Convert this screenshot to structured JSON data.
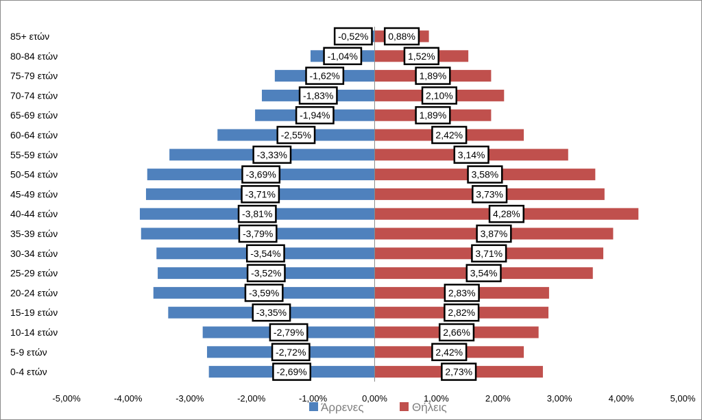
{
  "chart_data": {
    "type": "bar",
    "orientation": "horizontal",
    "stacked_pyramid": true,
    "categories": [
      "85+ ετών",
      "80-84 ετών",
      "75-79 ετών",
      "70-74 ετών",
      "65-69 ετών",
      "60-64 ετών",
      "55-59 ετών",
      "50-54 ετών",
      "45-49 ετών",
      "40-44 ετών",
      "35-39 ετών",
      "30-34 ετών",
      "25-29 ετών",
      "20-24 ετών",
      "15-19 ετών",
      "10-14 ετών",
      "5-9 ετών",
      "0-4 ετών"
    ],
    "series": [
      {
        "name": "Άρρενες",
        "color": "#4f81bd",
        "values": [
          -0.52,
          -1.04,
          -1.62,
          -1.83,
          -1.94,
          -2.55,
          -3.33,
          -3.69,
          -3.71,
          -3.81,
          -3.79,
          -3.54,
          -3.52,
          -3.59,
          -3.35,
          -2.79,
          -2.72,
          -2.69
        ],
        "labels": [
          "-0,52%",
          "-1,04%",
          "-1,62%",
          "-1,83%",
          "-1,94%",
          "-2,55%",
          "-3,33%",
          "-3,69%",
          "-3,71%",
          "-3,81%",
          "-3,79%",
          "-3,54%",
          "-3,52%",
          "-3,59%",
          "-3,35%",
          "-2,79%",
          "-2,72%",
          "-2,69%"
        ]
      },
      {
        "name": "Θήλεις",
        "color": "#c0504d",
        "values": [
          0.88,
          1.52,
          1.89,
          2.1,
          1.89,
          2.42,
          3.14,
          3.58,
          3.73,
          4.28,
          3.87,
          3.71,
          3.54,
          2.83,
          2.82,
          2.66,
          2.42,
          2.73
        ],
        "labels": [
          "0,88%",
          "1,52%",
          "1,89%",
          "2,10%",
          "1,89%",
          "2,42%",
          "3,14%",
          "3,58%",
          "3,73%",
          "4,28%",
          "3,87%",
          "3,71%",
          "3,54%",
          "2,83%",
          "2,82%",
          "2,66%",
          "2,42%",
          "2,73%"
        ]
      }
    ],
    "xlim": [
      -5,
      5
    ],
    "xticks": [
      -5,
      -4,
      -3,
      -2,
      -1,
      0,
      1,
      2,
      3,
      4,
      5
    ],
    "xtick_labels": [
      "-5,00%",
      "-4,00%",
      "-3,00%",
      "-2,00%",
      "-1,00%",
      "0,00%",
      "1,00%",
      "2,00%",
      "3,00%",
      "4,00%",
      "5,00%"
    ],
    "legend_position": "bottom",
    "grid": false
  }
}
